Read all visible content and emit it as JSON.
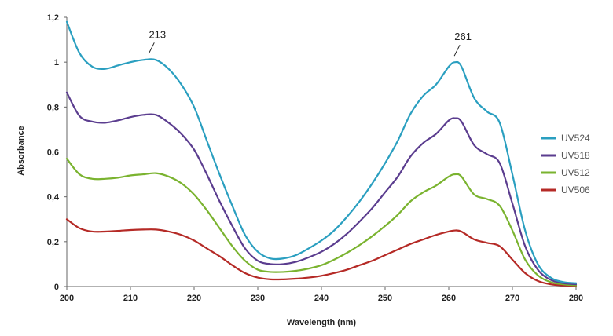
{
  "chart_data": {
    "type": "line",
    "xlabel": "Wavelength (nm)",
    "ylabel": "Absorbance",
    "xlim": [
      200,
      280
    ],
    "ylim": [
      0,
      1.2
    ],
    "xticks": [
      "200",
      "210",
      "220",
      "230",
      "240",
      "250",
      "260",
      "270",
      "280"
    ],
    "yticks": [
      "0",
      "0,2",
      "0,4",
      "0,6",
      "0,8",
      "1",
      "1,2"
    ],
    "grid": false,
    "legend_position": "right",
    "annotations": [
      {
        "text": "213",
        "x": 213,
        "y": 1.01
      },
      {
        "text": "261",
        "x": 261,
        "y": 1.0
      }
    ],
    "x": [
      200,
      202,
      204,
      206,
      208,
      210,
      212,
      214,
      216,
      218,
      220,
      222,
      224,
      226,
      228,
      230,
      232,
      234,
      236,
      238,
      240,
      242,
      244,
      246,
      248,
      250,
      252,
      254,
      256,
      258,
      260,
      261,
      262,
      264,
      266,
      268,
      270,
      272,
      274,
      276,
      278,
      280
    ],
    "series": [
      {
        "name": "UV524",
        "color": "#2a9fc0",
        "values": [
          1.18,
          1.04,
          0.98,
          0.97,
          0.985,
          1.0,
          1.01,
          1.01,
          0.97,
          0.9,
          0.8,
          0.65,
          0.5,
          0.36,
          0.23,
          0.155,
          0.125,
          0.125,
          0.14,
          0.17,
          0.205,
          0.25,
          0.31,
          0.38,
          0.46,
          0.55,
          0.65,
          0.77,
          0.85,
          0.9,
          0.98,
          1.0,
          0.98,
          0.84,
          0.78,
          0.73,
          0.5,
          0.25,
          0.1,
          0.04,
          0.02,
          0.015
        ]
      },
      {
        "name": "UV518",
        "color": "#5b3d8f",
        "values": [
          0.865,
          0.76,
          0.735,
          0.73,
          0.74,
          0.755,
          0.765,
          0.765,
          0.73,
          0.68,
          0.61,
          0.5,
          0.38,
          0.27,
          0.17,
          0.115,
          0.1,
          0.1,
          0.11,
          0.13,
          0.155,
          0.19,
          0.235,
          0.29,
          0.35,
          0.42,
          0.49,
          0.58,
          0.64,
          0.68,
          0.74,
          0.75,
          0.735,
          0.63,
          0.59,
          0.55,
          0.37,
          0.18,
          0.075,
          0.03,
          0.015,
          0.01
        ]
      },
      {
        "name": "UV512",
        "color": "#7ab32f",
        "values": [
          0.57,
          0.5,
          0.48,
          0.48,
          0.485,
          0.495,
          0.5,
          0.505,
          0.49,
          0.46,
          0.41,
          0.34,
          0.26,
          0.18,
          0.115,
          0.075,
          0.065,
          0.065,
          0.07,
          0.08,
          0.095,
          0.12,
          0.15,
          0.185,
          0.225,
          0.27,
          0.32,
          0.38,
          0.42,
          0.45,
          0.49,
          0.5,
          0.49,
          0.41,
          0.39,
          0.36,
          0.25,
          0.12,
          0.05,
          0.02,
          0.01,
          0.005
        ]
      },
      {
        "name": "UV506",
        "color": "#b52a26",
        "values": [
          0.3,
          0.26,
          0.245,
          0.245,
          0.248,
          0.252,
          0.254,
          0.254,
          0.245,
          0.23,
          0.205,
          0.17,
          0.135,
          0.095,
          0.06,
          0.04,
          0.032,
          0.032,
          0.035,
          0.04,
          0.048,
          0.06,
          0.075,
          0.095,
          0.115,
          0.14,
          0.165,
          0.19,
          0.21,
          0.23,
          0.245,
          0.25,
          0.245,
          0.21,
          0.195,
          0.18,
          0.12,
          0.06,
          0.025,
          0.01,
          0.005,
          0.003
        ]
      }
    ]
  }
}
